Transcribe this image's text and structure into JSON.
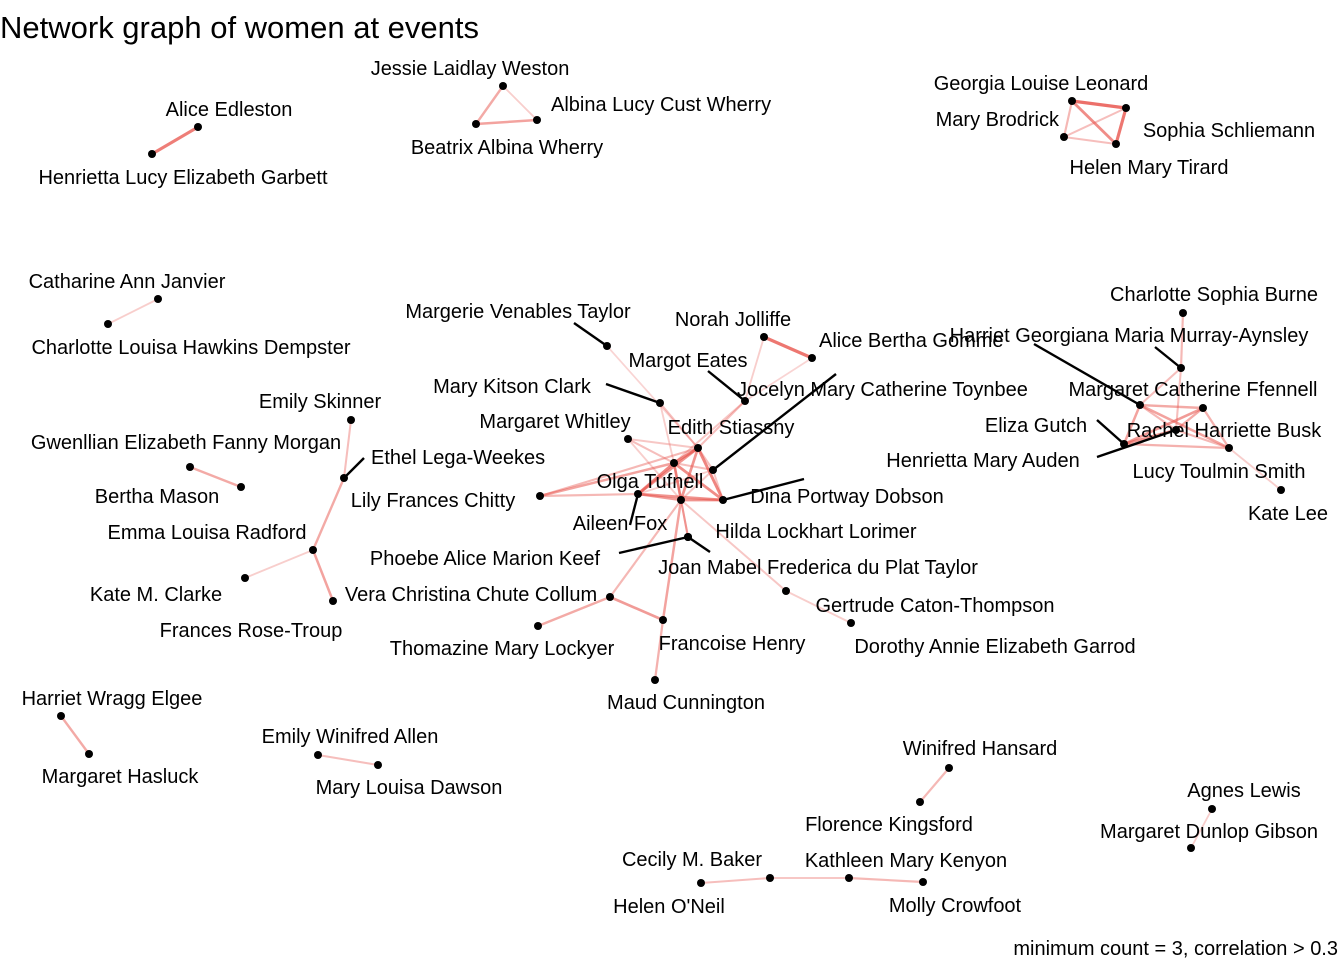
{
  "title": "Network graph of women at events",
  "caption": "minimum count = 3, correlation > 0.3",
  "edge_color": "#e8554e",
  "node_color": "#000000",
  "nodes": [
    {
      "id": "alice_edleston",
      "label": "Alice Edleston"
    },
    {
      "id": "henrietta_garbett",
      "label": "Henrietta Lucy Elizabeth Garbett"
    },
    {
      "id": "jessie_weston",
      "label": "Jessie Laidlay Weston"
    },
    {
      "id": "albina_wherry",
      "label": "Albina Lucy Cust Wherry"
    },
    {
      "id": "beatrix_wherry",
      "label": "Beatrix Albina Wherry"
    },
    {
      "id": "georgia_leonard",
      "label": "Georgia Louise Leonard"
    },
    {
      "id": "mary_brodrick",
      "label": "Mary Brodrick"
    },
    {
      "id": "sophia_schliemann",
      "label": "Sophia Schliemann"
    },
    {
      "id": "helen_tirard",
      "label": "Helen Mary Tirard"
    },
    {
      "id": "catharine_janvier",
      "label": "Catharine Ann Janvier"
    },
    {
      "id": "charlotte_dempster",
      "label": "Charlotte Louisa Hawkins Dempster"
    },
    {
      "id": "charlotte_burne",
      "label": "Charlotte Sophia Burne"
    },
    {
      "id": "harriet_murray_aynsley",
      "label": "Harriet Georgiana Maria Murray-Aynsley"
    },
    {
      "id": "margaret_ffennell",
      "label": "Margaret Catherine Ffennell"
    },
    {
      "id": "eliza_gutch",
      "label": "Eliza Gutch"
    },
    {
      "id": "rachel_busk",
      "label": "Rachel Harriette Busk"
    },
    {
      "id": "henrietta_auden",
      "label": "Henrietta Mary Auden"
    },
    {
      "id": "lucy_toulmin_smith",
      "label": "Lucy Toulmin Smith"
    },
    {
      "id": "kate_lee",
      "label": "Kate Lee"
    },
    {
      "id": "margerie_taylor",
      "label": "Margerie Venables Taylor"
    },
    {
      "id": "norah_jolliffe",
      "label": "Norah Jolliffe"
    },
    {
      "id": "alice_gomme",
      "label": "Alice Bertha Gomme"
    },
    {
      "id": "margot_eates",
      "label": "Margot Eates"
    },
    {
      "id": "jocelyn_toynbee",
      "label": "Jocelyn Mary Catherine Toynbee"
    },
    {
      "id": "mary_kitson_clark",
      "label": "Mary Kitson Clark"
    },
    {
      "id": "margaret_whitley",
      "label": "Margaret Whitley"
    },
    {
      "id": "edith_stiassny",
      "label": "Edith Stiassny"
    },
    {
      "id": "olga_tufnell",
      "label": "Olga Tufnell"
    },
    {
      "id": "lily_chitty",
      "label": "Lily Frances Chitty"
    },
    {
      "id": "dina_dobson",
      "label": "Dina Portway Dobson"
    },
    {
      "id": "aileen_fox",
      "label": "Aileen Fox"
    },
    {
      "id": "hilda_lorimer",
      "label": "Hilda Lockhart Lorimer"
    },
    {
      "id": "phoebe_keef",
      "label": "Phoebe Alice Marion Keef"
    },
    {
      "id": "joan_du_plat_taylor",
      "label": "Joan Mabel Frederica du Plat Taylor"
    },
    {
      "id": "gertrude_caton_thompson",
      "label": "Gertrude Caton-Thompson"
    },
    {
      "id": "dorothy_garrod",
      "label": "Dorothy Annie Elizabeth Garrod"
    },
    {
      "id": "vera_collum",
      "label": "Vera Christina Chute Collum"
    },
    {
      "id": "thomazine_lockyer",
      "label": "Thomazine Mary Lockyer"
    },
    {
      "id": "francoise_henry",
      "label": "Francoise Henry"
    },
    {
      "id": "maud_cunnington",
      "label": "Maud Cunnington"
    },
    {
      "id": "emily_skinner",
      "label": "Emily Skinner"
    },
    {
      "id": "gwenllian_morgan",
      "label": "Gwenllian Elizabeth Fanny Morgan"
    },
    {
      "id": "ethel_lega_weekes",
      "label": "Ethel Lega-Weekes"
    },
    {
      "id": "bertha_mason",
      "label": "Bertha Mason"
    },
    {
      "id": "emma_radford",
      "label": "Emma Louisa Radford"
    },
    {
      "id": "kate_clarke",
      "label": "Kate M. Clarke"
    },
    {
      "id": "frances_rose_troup",
      "label": "Frances Rose-Troup"
    },
    {
      "id": "harriet_elgee",
      "label": "Harriet Wragg Elgee"
    },
    {
      "id": "margaret_hasluck",
      "label": "Margaret Hasluck"
    },
    {
      "id": "emily_allen",
      "label": "Emily Winifred Allen"
    },
    {
      "id": "mary_dawson",
      "label": "Mary Louisa Dawson"
    },
    {
      "id": "winifred_hansard",
      "label": "Winifred Hansard"
    },
    {
      "id": "florence_kingsford",
      "label": "Florence Kingsford"
    },
    {
      "id": "cecily_baker",
      "label": "Cecily M. Baker"
    },
    {
      "id": "kathleen_kenyon",
      "label": "Kathleen Mary Kenyon"
    },
    {
      "id": "helen_oneil",
      "label": "Helen O'Neil"
    },
    {
      "id": "molly_crowfoot",
      "label": "Molly Crowfoot"
    },
    {
      "id": "agnes_lewis",
      "label": "Agnes Lewis"
    },
    {
      "id": "margaret_gibson",
      "label": "Margaret Dunlop Gibson"
    }
  ],
  "edges": [
    {
      "source": "alice_edleston",
      "target": "henrietta_garbett",
      "weight": 0.75
    },
    {
      "source": "jessie_weston",
      "target": "albina_wherry",
      "weight": 0.2
    },
    {
      "source": "jessie_weston",
      "target": "beatrix_wherry",
      "weight": 0.45
    },
    {
      "source": "albina_wherry",
      "target": "beatrix_wherry",
      "weight": 0.5
    },
    {
      "source": "georgia_leonard",
      "target": "sophia_schliemann",
      "weight": 0.85
    },
    {
      "source": "georgia_leonard",
      "target": "mary_brodrick",
      "weight": 0.35
    },
    {
      "source": "georgia_leonard",
      "target": "helen_tirard",
      "weight": 0.65
    },
    {
      "source": "mary_brodrick",
      "target": "sophia_schliemann",
      "weight": 0.3
    },
    {
      "source": "mary_brodrick",
      "target": "helen_tirard",
      "weight": 0.3
    },
    {
      "source": "sophia_schliemann",
      "target": "helen_tirard",
      "weight": 0.8
    },
    {
      "source": "catharine_janvier",
      "target": "charlotte_dempster",
      "weight": 0.2
    },
    {
      "source": "charlotte_burne",
      "target": "harriet_murray_aynsley",
      "weight": 0.35
    },
    {
      "source": "harriet_murray_aynsley",
      "target": "margaret_ffennell",
      "weight": 0.3
    },
    {
      "source": "margaret_ffennell",
      "target": "eliza_gutch",
      "weight": 0.5
    },
    {
      "source": "margaret_ffennell",
      "target": "rachel_busk",
      "weight": 0.45
    },
    {
      "source": "margaret_ffennell",
      "target": "henrietta_auden",
      "weight": 0.35
    },
    {
      "source": "margaret_ffennell",
      "target": "lucy_toulmin_smith",
      "weight": 0.5
    },
    {
      "source": "eliza_gutch",
      "target": "rachel_busk",
      "weight": 0.55
    },
    {
      "source": "eliza_gutch",
      "target": "henrietta_auden",
      "weight": 0.6
    },
    {
      "source": "eliza_gutch",
      "target": "lucy_toulmin_smith",
      "weight": 0.4
    },
    {
      "source": "rachel_busk",
      "target": "henrietta_auden",
      "weight": 0.45
    },
    {
      "source": "rachel_busk",
      "target": "lucy_toulmin_smith",
      "weight": 0.4
    },
    {
      "source": "henrietta_auden",
      "target": "lucy_toulmin_smith",
      "weight": 0.35
    },
    {
      "source": "henrietta_auden",
      "target": "harriet_murray_aynsley",
      "weight": 0.3
    },
    {
      "source": "lucy_toulmin_smith",
      "target": "kate_lee",
      "weight": 0.2
    },
    {
      "source": "norah_jolliffe",
      "target": "alice_gomme",
      "weight": 0.8
    },
    {
      "source": "norah_jolliffe",
      "target": "margot_eates",
      "weight": 0.2
    },
    {
      "source": "alice_gomme",
      "target": "margot_eates",
      "weight": 0.15
    },
    {
      "source": "margerie_taylor",
      "target": "edith_stiassny",
      "weight": 0.15
    },
    {
      "source": "mary_kitson_clark",
      "target": "edith_stiassny",
      "weight": 0.3
    },
    {
      "source": "mary_kitson_clark",
      "target": "olga_tufnell",
      "weight": 0.2
    },
    {
      "source": "margaret_whitley",
      "target": "edith_stiassny",
      "weight": 0.25
    },
    {
      "source": "margaret_whitley",
      "target": "olga_tufnell",
      "weight": 0.3
    },
    {
      "source": "margaret_whitley",
      "target": "hilda_lorimer",
      "weight": 0.2
    },
    {
      "source": "margot_eates",
      "target": "edith_stiassny",
      "weight": 0.3
    },
    {
      "source": "margot_eates",
      "target": "olga_tufnell",
      "weight": 0.25
    },
    {
      "source": "jocelyn_toynbee",
      "target": "edith_stiassny",
      "weight": 0.3
    },
    {
      "source": "jocelyn_toynbee",
      "target": "olga_tufnell",
      "weight": 0.3
    },
    {
      "source": "jocelyn_toynbee",
      "target": "dina_dobson",
      "weight": 0.25
    },
    {
      "source": "jocelyn_toynbee",
      "target": "aileen_fox",
      "weight": 0.2
    },
    {
      "source": "jocelyn_toynbee",
      "target": "hilda_lorimer",
      "weight": 0.25
    },
    {
      "source": "edith_stiassny",
      "target": "olga_tufnell",
      "weight": 0.7
    },
    {
      "source": "edith_stiassny",
      "target": "dina_dobson",
      "weight": 0.7
    },
    {
      "source": "edith_stiassny",
      "target": "aileen_fox",
      "weight": 0.6
    },
    {
      "source": "edith_stiassny",
      "target": "hilda_lorimer",
      "weight": 0.6
    },
    {
      "source": "olga_tufnell",
      "target": "dina_dobson",
      "weight": 0.65
    },
    {
      "source": "olga_tufnell",
      "target": "aileen_fox",
      "weight": 0.7
    },
    {
      "source": "olga_tufnell",
      "target": "hilda_lorimer",
      "weight": 0.6
    },
    {
      "source": "dina_dobson",
      "target": "aileen_fox",
      "weight": 0.6
    },
    {
      "source": "dina_dobson",
      "target": "hilda_lorimer",
      "weight": 0.6
    },
    {
      "source": "aileen_fox",
      "target": "hilda_lorimer",
      "weight": 0.55
    },
    {
      "source": "lily_chitty",
      "target": "olga_tufnell",
      "weight": 0.5
    },
    {
      "source": "lily_chitty",
      "target": "aileen_fox",
      "weight": 0.35
    },
    {
      "source": "lily_chitty",
      "target": "edith_stiassny",
      "weight": 0.35
    },
    {
      "source": "phoebe_keef",
      "target": "olga_tufnell",
      "weight": 0.35
    },
    {
      "source": "phoebe_keef",
      "target": "hilda_lorimer",
      "weight": 0.3
    },
    {
      "source": "hilda_lorimer",
      "target": "francoise_henry",
      "weight": 0.5
    },
    {
      "source": "hilda_lorimer",
      "target": "vera_collum",
      "weight": 0.35
    },
    {
      "source": "hilda_lorimer",
      "target": "gertrude_caton_thompson",
      "weight": 0.25
    },
    {
      "source": "gertrude_caton_thompson",
      "target": "dorothy_garrod",
      "weight": 0.2
    },
    {
      "source": "vera_collum",
      "target": "francoise_henry",
      "weight": 0.55
    },
    {
      "source": "vera_collum",
      "target": "thomazine_lockyer",
      "weight": 0.45
    },
    {
      "source": "francoise_henry",
      "target": "maud_cunnington",
      "weight": 0.4
    },
    {
      "source": "emily_skinner",
      "target": "ethel_lega_weekes",
      "weight": 0.3
    },
    {
      "source": "ethel_lega_weekes",
      "target": "emma_radford",
      "weight": 0.45
    },
    {
      "source": "emma_radford",
      "target": "kate_clarke",
      "weight": 0.2
    },
    {
      "source": "emma_radford",
      "target": "frances_rose_troup",
      "weight": 0.5
    },
    {
      "source": "gwenllian_morgan",
      "target": "bertha_mason",
      "weight": 0.45
    },
    {
      "source": "harriet_elgee",
      "target": "margaret_hasluck",
      "weight": 0.45
    },
    {
      "source": "emily_allen",
      "target": "mary_dawson",
      "weight": 0.3
    },
    {
      "source": "winifred_hansard",
      "target": "florence_kingsford",
      "weight": 0.35
    },
    {
      "source": "cecily_baker",
      "target": "helen_oneil",
      "weight": 0.3
    },
    {
      "source": "cecily_baker",
      "target": "kathleen_kenyon",
      "weight": 0.25
    },
    {
      "source": "kathleen_kenyon",
      "target": "molly_crowfoot",
      "weight": 0.35
    },
    {
      "source": "agnes_lewis",
      "target": "margaret_gibson",
      "weight": 0.2
    }
  ]
}
